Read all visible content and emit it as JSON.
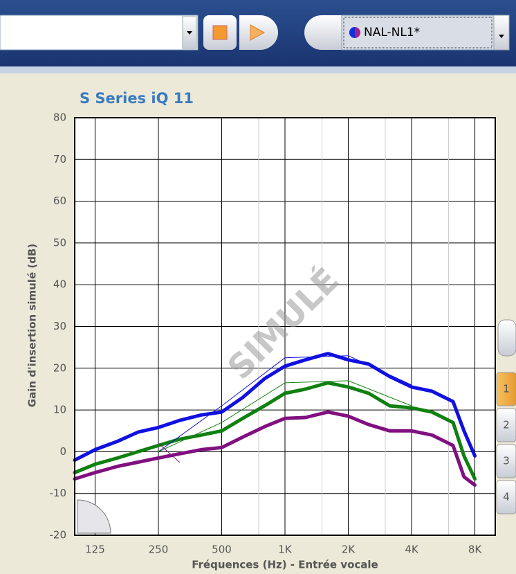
{
  "toolbar": {
    "preset": "NAL-NL1*"
  },
  "side_tabs": [
    "1",
    "2",
    "3",
    "4"
  ],
  "chart_data": {
    "type": "line",
    "title": "S Series iQ 11",
    "ylabel": "Gain d'insertion simulé (dB)",
    "xlabel": "Fréquences (Hz) - Entrée vocale",
    "watermark": "SIMULÉ",
    "xscale": "log",
    "xlim": [
      100,
      10000
    ],
    "xticks": [
      125,
      250,
      500,
      {
        "value": 1000,
        "label": "1K"
      },
      {
        "value": 2000,
        "label": "2K"
      },
      {
        "value": 4000,
        "label": "4K"
      },
      {
        "value": 8000,
        "label": "8K"
      }
    ],
    "xminor": [
      750,
      1500,
      3000,
      6000
    ],
    "ylim": [
      -20,
      80
    ],
    "yticks": [
      -20,
      -10,
      0,
      10,
      20,
      30,
      40,
      50,
      60,
      70,
      80
    ],
    "grid": true,
    "x": [
      100,
      125,
      160,
      200,
      250,
      315,
      400,
      500,
      630,
      800,
      1000,
      1250,
      1600,
      2000,
      2500,
      3150,
      4000,
      5000,
      6300,
      7100,
      8000
    ],
    "series": [
      {
        "color": "#1010e0",
        "linewidth": 5,
        "values": [
          -2,
          0.5,
          2.5,
          4.7,
          5.8,
          7.5,
          8.8,
          9.5,
          13,
          17.5,
          20.5,
          22,
          23.5,
          22,
          21,
          18,
          15.5,
          14.5,
          12,
          5,
          -1
        ]
      },
      {
        "color": "#108010",
        "linewidth": 5,
        "values": [
          -5,
          -3,
          -1.5,
          0,
          1.5,
          3,
          4,
          5,
          8,
          11,
          14,
          15,
          16.5,
          15.5,
          14,
          11,
          10.5,
          9.5,
          7,
          -1,
          -6.5
        ]
      },
      {
        "color": "#801080",
        "linewidth": 5,
        "values": [
          -6.5,
          -5,
          -3.5,
          -2.5,
          -1.5,
          -0.5,
          0.5,
          1,
          3.5,
          6,
          8,
          8.2,
          9.5,
          8.5,
          6.5,
          5,
          5,
          4,
          1.5,
          -6,
          -8
        ]
      },
      {
        "color": "#1010e0",
        "linewidth": 1,
        "x": [
          250,
          500,
          1000,
          2000,
          4000
        ],
        "values": [
          0,
          11,
          22.5,
          23,
          16
        ]
      },
      {
        "color": "#108010",
        "linewidth": 1,
        "x": [
          250,
          500,
          1000,
          2000,
          4000
        ],
        "values": [
          0,
          7,
          16.5,
          17,
          11
        ]
      },
      {
        "color": "#801080",
        "linewidth": 1,
        "x": [
          250,
          315
        ],
        "values": [
          2,
          -2.5
        ]
      }
    ]
  }
}
